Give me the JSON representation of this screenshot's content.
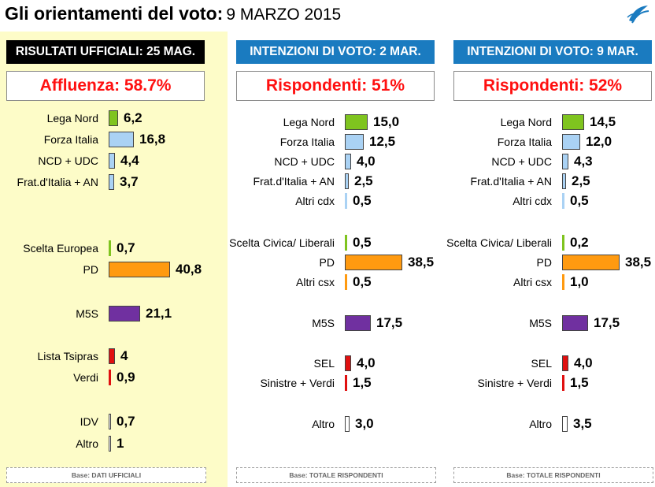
{
  "page": {
    "title": "Gli orientamenti del voto:",
    "date": "9 MARZO 2015"
  },
  "colors": {
    "dark_header": "#000000",
    "blue_header": "#1a7bc0",
    "metric_text": "#ff1010",
    "highlight_bg": "#fdfcc8",
    "lega": "#7fc41f",
    "cdx": "#aad2f4",
    "pd": "#ff9a10",
    "m5s": "#7030a0",
    "csx": "#e01010",
    "altro": "#ffffff"
  },
  "chart_data": [
    {
      "type": "bar",
      "orientation": "horizontal",
      "header": "RISULTATI UFFICIALI:  25 MAG.",
      "metric": "Affluenza: 58.7%",
      "footer": "Base: DATI UFFICIALI",
      "groups": [
        {
          "items": [
            {
              "label": "Lega Nord",
              "value": 6.2,
              "display": "6,2",
              "color": "lega"
            },
            {
              "label": "Forza Italia",
              "value": 16.8,
              "display": "16,8",
              "color": "cdx"
            },
            {
              "label": "NCD + UDC",
              "value": 4.4,
              "display": "4,4",
              "color": "cdx"
            },
            {
              "label": "Frat.d'Italia + AN",
              "value": 3.7,
              "display": "3,7",
              "color": "cdx"
            }
          ]
        },
        {
          "items": [
            {
              "label": "Scelta Europea",
              "value": 0.7,
              "display": "0,7",
              "color": "lega"
            },
            {
              "label": "PD",
              "value": 40.8,
              "display": "40,8",
              "color": "pd"
            }
          ]
        },
        {
          "items": [
            {
              "label": "M5S",
              "value": 21.1,
              "display": "21,1",
              "color": "m5s"
            }
          ]
        },
        {
          "items": [
            {
              "label": "Lista Tsipras",
              "value": 4,
              "display": "4",
              "color": "csx"
            },
            {
              "label": "Verdi",
              "value": 0.9,
              "display": "0,9",
              "color": "csx"
            }
          ]
        },
        {
          "items": [
            {
              "label": "IDV",
              "value": 0.7,
              "display": "0,7",
              "color": "altro"
            },
            {
              "label": "Altro",
              "value": 1,
              "display": "1",
              "color": "altro"
            }
          ]
        }
      ]
    },
    {
      "type": "bar",
      "orientation": "horizontal",
      "header": "INTENZIONI DI VOTO:  2 MAR.",
      "metric": "Rispondenti: 51%",
      "footer": "Base: TOTALE RISPONDENTI",
      "groups": [
        {
          "items": [
            {
              "label": "Lega Nord",
              "value": 15.0,
              "display": "15,0",
              "color": "lega"
            },
            {
              "label": "Forza Italia",
              "value": 12.5,
              "display": "12,5",
              "color": "cdx"
            },
            {
              "label": "NCD + UDC",
              "value": 4.0,
              "display": "4,0",
              "color": "cdx"
            },
            {
              "label": "Frat.d'Italia + AN",
              "value": 2.5,
              "display": "2,5",
              "color": "cdx"
            },
            {
              "label": "Altri cdx",
              "value": 0.5,
              "display": "0,5",
              "color": "cdx"
            }
          ]
        },
        {
          "items": [
            {
              "label": "Scelta Civica/ Liberali",
              "value": 0.5,
              "display": "0,5",
              "color": "lega"
            },
            {
              "label": "PD",
              "value": 38.5,
              "display": "38,5",
              "color": "pd"
            },
            {
              "label": "Altri csx",
              "value": 0.5,
              "display": "0,5",
              "color": "pd"
            }
          ]
        },
        {
          "items": [
            {
              "label": "M5S",
              "value": 17.5,
              "display": "17,5",
              "color": "m5s"
            }
          ]
        },
        {
          "items": [
            {
              "label": "SEL",
              "value": 4.0,
              "display": "4,0",
              "color": "csx"
            },
            {
              "label": "Sinistre + Verdi",
              "value": 1.5,
              "display": "1,5",
              "color": "csx"
            }
          ]
        },
        {
          "items": [
            {
              "label": "Altro",
              "value": 3.0,
              "display": "3,0",
              "color": "altro"
            }
          ]
        }
      ]
    },
    {
      "type": "bar",
      "orientation": "horizontal",
      "header": "INTENZIONI DI VOTO:  9 MAR.",
      "metric": "Rispondenti: 52%",
      "footer": "Base: TOTALE RISPONDENTI",
      "groups": [
        {
          "items": [
            {
              "label": "Lega Nord",
              "value": 14.5,
              "display": "14,5",
              "color": "lega"
            },
            {
              "label": "Forza Italia",
              "value": 12.0,
              "display": "12,0",
              "color": "cdx"
            },
            {
              "label": "NCD + UDC",
              "value": 4.3,
              "display": "4,3",
              "color": "cdx"
            },
            {
              "label": "Frat.d'Italia + AN",
              "value": 2.5,
              "display": "2,5",
              "color": "cdx"
            },
            {
              "label": "Altri cdx",
              "value": 0.5,
              "display": "0,5",
              "color": "cdx"
            }
          ]
        },
        {
          "items": [
            {
              "label": "Scelta Civica/ Liberali",
              "value": 0.2,
              "display": "0,2",
              "color": "lega"
            },
            {
              "label": "PD",
              "value": 38.5,
              "display": "38,5",
              "color": "pd"
            },
            {
              "label": "Altri csx",
              "value": 1.0,
              "display": "1,0",
              "color": "pd"
            }
          ]
        },
        {
          "items": [
            {
              "label": "M5S",
              "value": 17.5,
              "display": "17,5",
              "color": "m5s"
            }
          ]
        },
        {
          "items": [
            {
              "label": "SEL",
              "value": 4.0,
              "display": "4,0",
              "color": "csx"
            },
            {
              "label": "Sinistre + Verdi",
              "value": 1.5,
              "display": "1,5",
              "color": "csx"
            }
          ]
        },
        {
          "items": [
            {
              "label": "Altro",
              "value": 3.5,
              "display": "3,5",
              "color": "altro"
            }
          ]
        }
      ]
    }
  ]
}
